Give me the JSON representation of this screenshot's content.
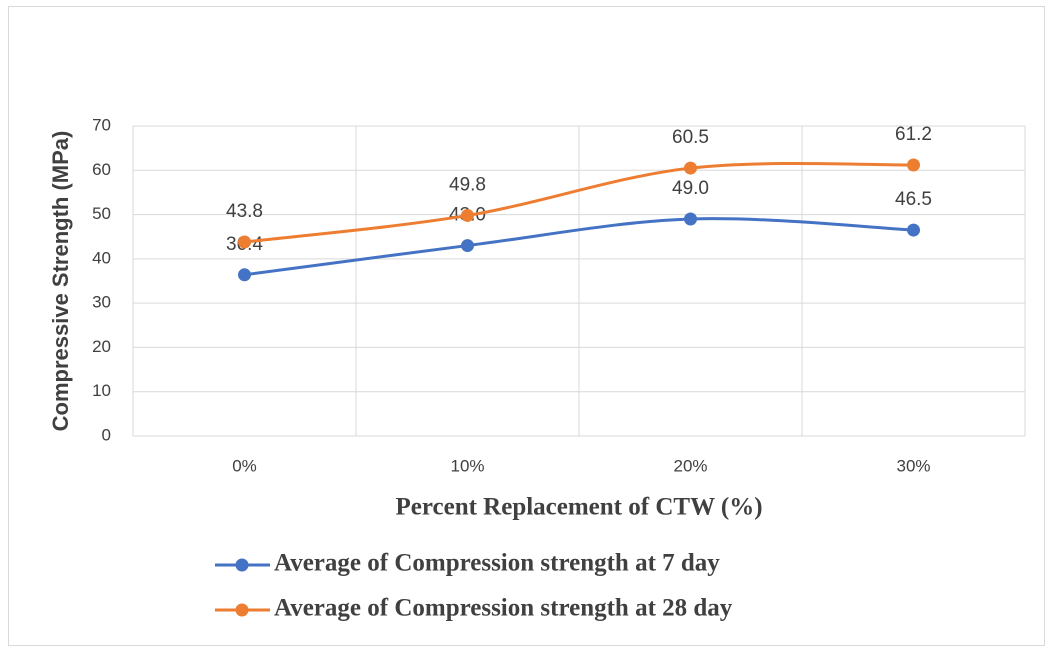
{
  "chart_data": {
    "type": "line",
    "x_label": "Percent Replacement of CTW (%)",
    "y_label": "Compressive Strength (MPa)",
    "categories": [
      "0%",
      "10%",
      "20%",
      "30%"
    ],
    "series": [
      {
        "name": "Average of Compression strength at 7 day",
        "color": "#4472c4",
        "values": [
          36.4,
          43.0,
          49.0,
          46.5
        ],
        "value_labels": [
          "36.4",
          "43.0",
          "49.0",
          "46.5"
        ]
      },
      {
        "name": "Average of Compression strength at 28 day",
        "color": "#ed7d31",
        "values": [
          43.8,
          49.8,
          60.5,
          61.2
        ],
        "value_labels": [
          "43.8",
          "49.8",
          "60.5",
          "61.2"
        ]
      }
    ],
    "ylim": [
      0,
      70
    ],
    "yticks": [
      0,
      10,
      20,
      30,
      40,
      50,
      60,
      70
    ],
    "grid": true,
    "smooth": true,
    "legend": "bottom"
  }
}
